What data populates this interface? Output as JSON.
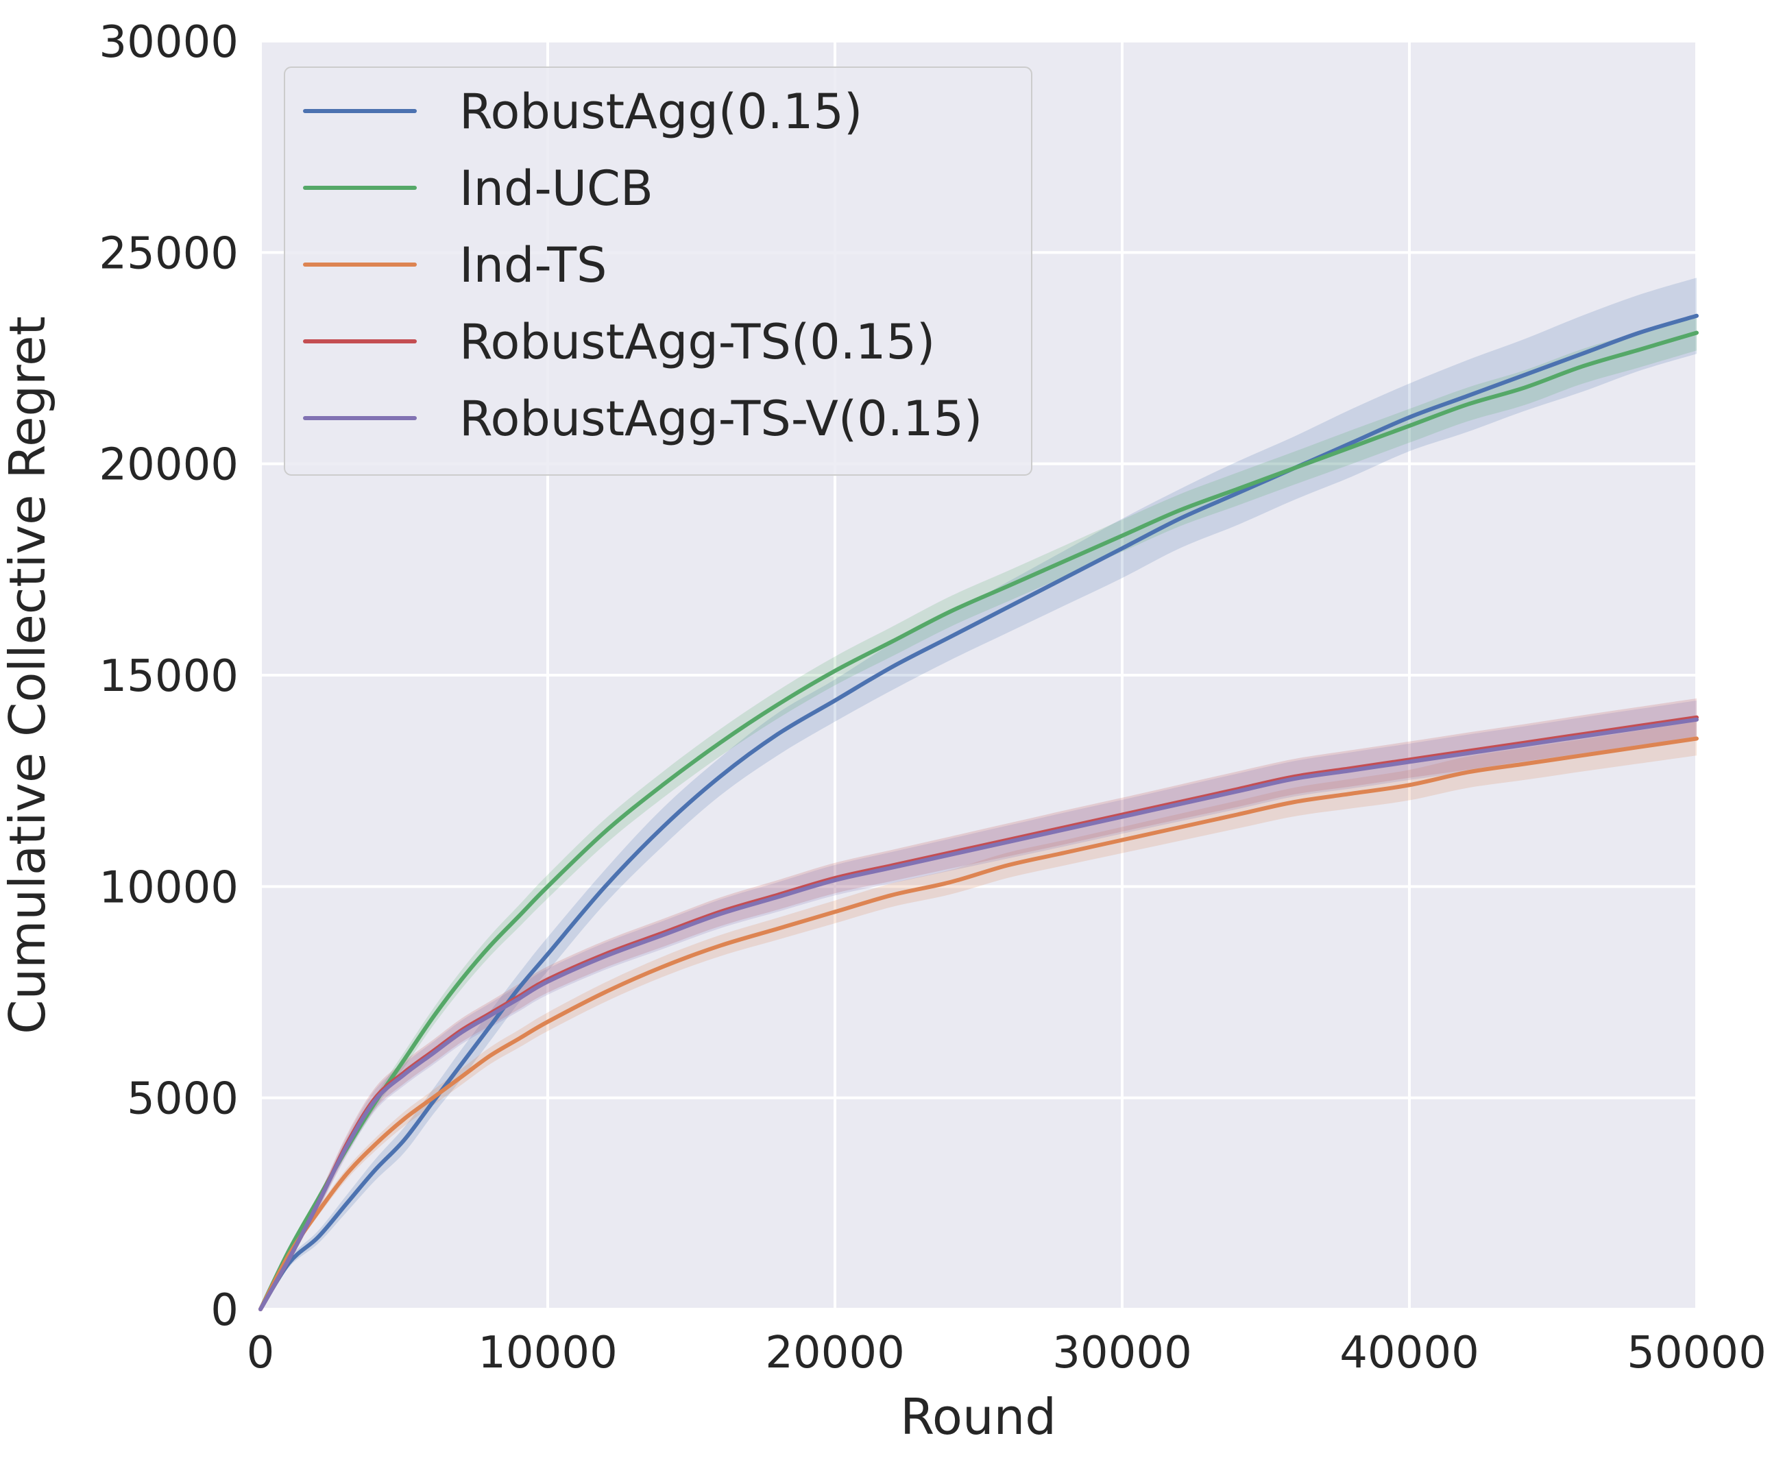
{
  "chart_data": {
    "type": "line",
    "xlabel": "Round",
    "ylabel": "Cumulative Collective Regret",
    "xlim": [
      0,
      50000
    ],
    "ylim": [
      0,
      30000
    ],
    "xticks": [
      "0",
      "10000",
      "20000",
      "30000",
      "40000",
      "50000"
    ],
    "yticks": [
      "0",
      "5000",
      "10000",
      "15000",
      "20000",
      "25000",
      "30000"
    ],
    "grid": true,
    "legend_position": "top-left",
    "background": "#eaeaf2",
    "x": [
      0,
      1000,
      2000,
      3000,
      4000,
      5000,
      6000,
      7000,
      8000,
      9000,
      10000,
      12000,
      14000,
      16000,
      18000,
      20000,
      22000,
      24000,
      26000,
      28000,
      30000,
      32000,
      34000,
      36000,
      38000,
      40000,
      42000,
      44000,
      46000,
      48000,
      50000
    ],
    "series": [
      {
        "name": "RobustAgg(0.15)",
        "color": "#4c72b0",
        "values": [
          0,
          1100,
          1700,
          2500,
          3300,
          4000,
          4900,
          5800,
          6700,
          7600,
          8400,
          10000,
          11400,
          12600,
          13600,
          14400,
          15200,
          15900,
          16600,
          17300,
          18000,
          18700,
          19300,
          19900,
          20500,
          21100,
          21600,
          22100,
          22600,
          23100,
          23500
        ],
        "band": [
          0,
          100,
          150,
          200,
          250,
          300,
          300,
          350,
          350,
          350,
          400,
          400,
          450,
          450,
          500,
          500,
          550,
          550,
          600,
          650,
          700,
          700,
          750,
          750,
          800,
          800,
          850,
          850,
          900,
          900,
          900
        ]
      },
      {
        "name": "Ind-UCB",
        "color": "#55a868",
        "values": [
          0,
          1400,
          2600,
          3800,
          4900,
          5900,
          6900,
          7800,
          8600,
          9300,
          10000,
          11300,
          12400,
          13400,
          14300,
          15100,
          15800,
          16500,
          17100,
          17700,
          18300,
          18900,
          19400,
          19900,
          20400,
          20900,
          21400,
          21800,
          22300,
          22700,
          23100
        ],
        "band": [
          0,
          50,
          80,
          120,
          150,
          180,
          200,
          220,
          240,
          260,
          280,
          300,
          310,
          320,
          330,
          340,
          350,
          360,
          360,
          370,
          380,
          380,
          390,
          390,
          400,
          400,
          400,
          410,
          410,
          420,
          420
        ]
      },
      {
        "name": "Ind-TS",
        "color": "#dd8452",
        "values": [
          0,
          1300,
          2300,
          3200,
          3900,
          4500,
          5000,
          5500,
          6000,
          6400,
          6800,
          7500,
          8100,
          8600,
          9000,
          9400,
          9800,
          10100,
          10500,
          10800,
          11100,
          11400,
          11700,
          12000,
          12200,
          12400,
          12700,
          12900,
          13100,
          13300,
          13500
        ],
        "band": [
          0,
          60,
          100,
          130,
          150,
          170,
          180,
          190,
          200,
          210,
          220,
          230,
          240,
          250,
          260,
          270,
          280,
          290,
          300,
          300,
          310,
          320,
          330,
          340,
          350,
          360,
          370,
          380,
          380,
          390,
          400
        ]
      },
      {
        "name": "RobustAgg-TS(0.15)",
        "color": "#c44e52",
        "values": [
          0,
          1200,
          2500,
          3900,
          5000,
          5600,
          6100,
          6600,
          7000,
          7400,
          7800,
          8400,
          8900,
          9400,
          9800,
          10200,
          10500,
          10800,
          11100,
          11400,
          11700,
          12000,
          12300,
          12600,
          12800,
          13000,
          13200,
          13400,
          13600,
          13800,
          14000
        ],
        "band": [
          0,
          80,
          150,
          220,
          250,
          260,
          270,
          280,
          290,
          300,
          310,
          320,
          330,
          340,
          350,
          360,
          370,
          380,
          390,
          400,
          400,
          410,
          420,
          420,
          430,
          430,
          440,
          440,
          450,
          450,
          450
        ]
      },
      {
        "name": "RobustAgg-TS-V(0.15)",
        "color": "#8172b3",
        "values": [
          0,
          1200,
          2500,
          3850,
          4950,
          5550,
          6050,
          6550,
          6950,
          7350,
          7750,
          8350,
          8850,
          9350,
          9750,
          10150,
          10450,
          10750,
          11050,
          11350,
          11650,
          11950,
          12250,
          12550,
          12750,
          12950,
          13150,
          13350,
          13550,
          13750,
          13950
        ],
        "band": [
          0,
          80,
          150,
          220,
          250,
          260,
          270,
          280,
          290,
          300,
          310,
          320,
          330,
          340,
          350,
          360,
          370,
          380,
          390,
          400,
          400,
          410,
          420,
          420,
          430,
          430,
          440,
          440,
          450,
          450,
          450
        ]
      }
    ]
  }
}
